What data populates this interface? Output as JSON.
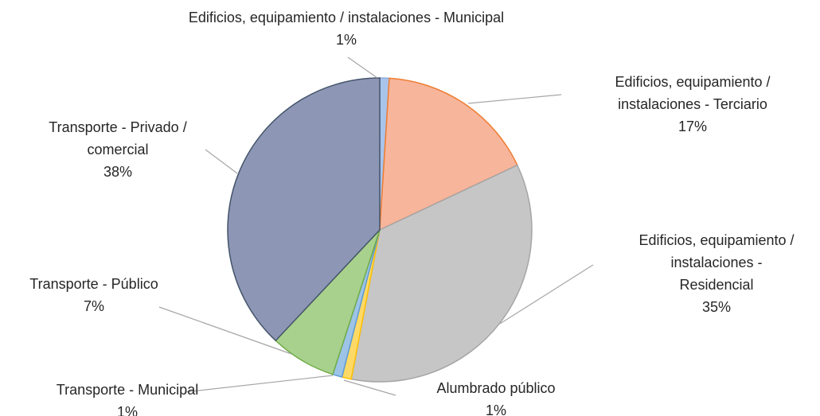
{
  "chart_data": {
    "type": "pie",
    "categories": [
      "Edificios, equipamiento / instalaciones - Municipal",
      "Edificios, equipamiento / instalaciones - Terciario",
      "Edificios, equipamiento / instalaciones - Residencial",
      "Alumbrado público",
      "Transporte - Municipal",
      "Transporte - Público",
      "Transporte - Privado / comercial"
    ],
    "values": [
      1,
      17,
      35,
      1,
      1,
      7,
      38
    ],
    "value_labels": [
      "1%",
      "17%",
      "35%",
      "1%",
      "1%",
      "7%",
      "38%"
    ],
    "colors": [
      "#a9c4eb",
      "#f7b59c",
      "#c6c6c6",
      "#ffd966",
      "#9dc3e6",
      "#a9d18e",
      "#8d97b5"
    ]
  }
}
